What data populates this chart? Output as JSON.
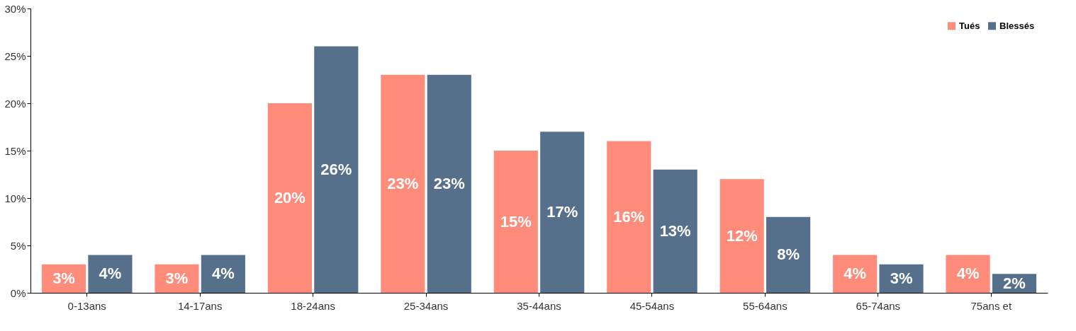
{
  "chart_data": {
    "type": "bar",
    "categories": [
      "0-13ans",
      "14-17ans",
      "18-24ans",
      "25-34ans",
      "35-44ans",
      "45-54ans",
      "55-64ans",
      "65-74ans",
      "75ans et"
    ],
    "series": [
      {
        "name": "Tués",
        "color": "#ff8b7b",
        "values": [
          3,
          3,
          20,
          23,
          15,
          16,
          12,
          4,
          4
        ],
        "value_labels": [
          "3%",
          "3%",
          "20%",
          "23%",
          "15%",
          "16%",
          "12%",
          "4%",
          "4%"
        ]
      },
      {
        "name": "Blessés",
        "color": "#56708c",
        "values": [
          4,
          4,
          26,
          23,
          17,
          13,
          8,
          3,
          2
        ],
        "value_labels": [
          "4%",
          "4%",
          "26%",
          "23%",
          "17%",
          "13%",
          "8%",
          "3%",
          "2%"
        ]
      }
    ],
    "ylim": [
      0,
      30
    ],
    "yticks": [
      {
        "value": 0,
        "label": "0%"
      },
      {
        "value": 5,
        "label": "5%"
      },
      {
        "value": 10,
        "label": "10%"
      },
      {
        "value": 15,
        "label": "15%"
      },
      {
        "value": 20,
        "label": "20%"
      },
      {
        "value": 25,
        "label": "25%"
      },
      {
        "value": 30,
        "label": "30%"
      }
    ],
    "grid": false,
    "legend": "top right"
  }
}
